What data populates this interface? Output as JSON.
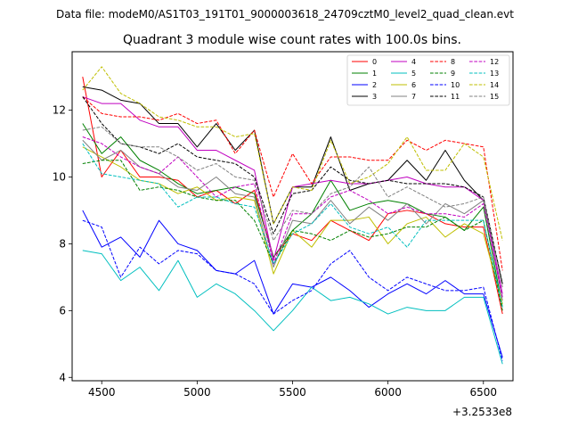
{
  "chart_data": {
    "type": "line",
    "suptitle": "Data file: modeM0/AS1T03_191T01_9000003618_24709cztM0_level2_quad_clean.evt",
    "title": "Quadrant 3 module wise count rates with 100.0s bins.",
    "xlabel": "",
    "ylabel": "",
    "x_offset_label": "+3.2533e8",
    "xlim": [
      4345,
      6655
    ],
    "ylim": [
      3.9,
      13.75
    ],
    "xticks": [
      4500,
      5000,
      5500,
      6000,
      6500
    ],
    "yticks": [
      4,
      6,
      8,
      10,
      12
    ],
    "legend_position": "top-right",
    "x": [
      4400,
      4500,
      4600,
      4700,
      4800,
      4900,
      5000,
      5100,
      5200,
      5300,
      5400,
      5500,
      5600,
      5700,
      5800,
      5900,
      6000,
      6100,
      6200,
      6300,
      6400,
      6500,
      6600
    ],
    "series": [
      {
        "name": "0",
        "color": "#ff0000",
        "dash": "solid",
        "values": [
          13.0,
          10.0,
          10.8,
          10.0,
          10.0,
          9.9,
          9.4,
          9.6,
          9.2,
          9.6,
          7.6,
          8.3,
          8.1,
          8.7,
          8.4,
          8.1,
          8.9,
          9.0,
          8.9,
          8.6,
          8.5,
          8.5,
          5.9
        ]
      },
      {
        "name": "1",
        "color": "#008000",
        "dash": "solid",
        "values": [
          11.6,
          10.7,
          11.2,
          10.5,
          10.2,
          9.8,
          9.5,
          9.6,
          9.7,
          9.5,
          7.6,
          8.4,
          8.9,
          9.9,
          9.0,
          9.2,
          9.3,
          9.2,
          8.9,
          8.8,
          8.4,
          9.1,
          6.1
        ]
      },
      {
        "name": "2",
        "color": "#0000ff",
        "dash": "solid",
        "values": [
          9.0,
          7.9,
          8.2,
          7.6,
          8.7,
          8.0,
          7.8,
          7.2,
          7.1,
          7.5,
          5.9,
          6.8,
          6.7,
          7.0,
          6.6,
          6.1,
          6.5,
          6.8,
          6.5,
          6.9,
          6.5,
          6.5,
          4.6
        ]
      },
      {
        "name": "3",
        "color": "#000000",
        "dash": "solid",
        "values": [
          12.7,
          12.6,
          12.3,
          12.2,
          11.6,
          11.6,
          10.9,
          11.6,
          10.8,
          11.4,
          8.6,
          9.7,
          9.7,
          11.2,
          9.6,
          9.8,
          9.9,
          10.5,
          9.9,
          10.8,
          9.9,
          9.3,
          6.8
        ]
      },
      {
        "name": "4",
        "color": "#c000c0",
        "dash": "solid",
        "values": [
          12.4,
          12.2,
          12.2,
          11.7,
          11.5,
          11.5,
          10.8,
          10.8,
          10.5,
          10.2,
          7.5,
          9.7,
          9.8,
          9.9,
          9.8,
          9.8,
          9.9,
          10.0,
          9.8,
          9.7,
          9.7,
          9.3,
          6.5
        ]
      },
      {
        "name": "5",
        "color": "#00bfbf",
        "dash": "solid",
        "values": [
          7.8,
          7.7,
          6.9,
          7.3,
          6.6,
          7.5,
          6.4,
          6.8,
          6.5,
          6.0,
          5.4,
          6.0,
          6.7,
          6.3,
          6.4,
          6.2,
          5.9,
          6.1,
          6.0,
          6.0,
          6.4,
          6.4,
          4.4
        ]
      },
      {
        "name": "6",
        "color": "#bfbf00",
        "dash": "solid",
        "values": [
          10.9,
          10.6,
          10.3,
          9.9,
          9.8,
          9.5,
          9.7,
          9.3,
          9.4,
          9.3,
          7.1,
          8.4,
          7.9,
          8.7,
          8.7,
          8.8,
          8.0,
          8.6,
          8.8,
          8.2,
          8.6,
          8.3,
          6.2
        ]
      },
      {
        "name": "7",
        "color": "#808080",
        "dash": "solid",
        "values": [
          11.1,
          10.5,
          10.8,
          10.3,
          10.1,
          9.7,
          9.6,
          10.0,
          9.5,
          9.4,
          7.3,
          8.7,
          8.6,
          9.3,
          8.6,
          9.1,
          8.7,
          9.2,
          8.6,
          9.2,
          8.9,
          9.3,
          6.3
        ]
      },
      {
        "name": "8",
        "color": "#ff0000",
        "dash": "dashed",
        "values": [
          12.4,
          11.9,
          11.8,
          11.8,
          11.7,
          11.9,
          11.6,
          11.7,
          10.7,
          11.4,
          9.4,
          10.7,
          9.8,
          10.6,
          10.6,
          10.5,
          10.5,
          11.1,
          10.8,
          11.1,
          11.0,
          10.9,
          7.2
        ]
      },
      {
        "name": "9",
        "color": "#008000",
        "dash": "dashed",
        "values": [
          10.4,
          10.5,
          10.5,
          9.6,
          9.7,
          9.6,
          9.4,
          9.3,
          9.3,
          8.7,
          7.4,
          8.4,
          8.3,
          8.1,
          8.4,
          8.2,
          8.3,
          8.5,
          8.5,
          8.8,
          8.4,
          8.7,
          6.0
        ]
      },
      {
        "name": "10",
        "color": "#0000ff",
        "dash": "dashed",
        "values": [
          8.7,
          8.5,
          7.0,
          7.9,
          7.4,
          7.8,
          7.7,
          7.2,
          7.1,
          6.8,
          5.9,
          6.3,
          6.6,
          7.4,
          7.8,
          7.0,
          6.6,
          7.0,
          6.8,
          6.6,
          6.6,
          6.7,
          4.5
        ]
      },
      {
        "name": "11",
        "color": "#000000",
        "dash": "dashed",
        "values": [
          12.4,
          11.6,
          11.0,
          10.9,
          10.7,
          11.0,
          10.6,
          10.5,
          10.4,
          10.0,
          8.3,
          9.5,
          9.6,
          10.3,
          9.9,
          9.8,
          9.9,
          9.8,
          9.8,
          9.8,
          9.7,
          9.4,
          6.8
        ]
      },
      {
        "name": "12",
        "color": "#c000c0",
        "dash": "dashed",
        "values": [
          11.2,
          11.0,
          10.6,
          10.3,
          10.1,
          10.6,
          10.0,
          9.4,
          9.7,
          9.8,
          7.4,
          8.9,
          8.9,
          9.4,
          9.6,
          9.3,
          8.9,
          9.1,
          8.9,
          8.9,
          8.8,
          9.2,
          6.4
        ]
      },
      {
        "name": "13",
        "color": "#00bfbf",
        "dash": "dashed",
        "values": [
          11.0,
          10.1,
          10.0,
          9.9,
          9.8,
          9.1,
          9.4,
          9.4,
          9.2,
          9.1,
          7.4,
          8.3,
          8.6,
          9.2,
          8.5,
          8.3,
          8.5,
          7.9,
          8.7,
          8.7,
          8.7,
          8.7,
          6.1
        ]
      },
      {
        "name": "14",
        "color": "#bfbf00",
        "dash": "dashed",
        "values": [
          12.6,
          13.3,
          12.5,
          12.2,
          11.8,
          11.7,
          11.5,
          11.5,
          11.2,
          11.3,
          8.6,
          9.7,
          9.6,
          11.1,
          9.8,
          10.0,
          10.4,
          11.2,
          10.2,
          10.2,
          11.0,
          10.6,
          8.1
        ]
      },
      {
        "name": "15",
        "color": "#808080",
        "dash": "dashed",
        "values": [
          11.4,
          11.5,
          11.0,
          10.9,
          10.9,
          10.6,
          10.2,
          10.4,
          10.0,
          9.9,
          8.1,
          9.0,
          8.9,
          9.5,
          9.7,
          10.3,
          9.4,
          9.7,
          9.4,
          9.1,
          9.2,
          9.4,
          6.7
        ]
      }
    ]
  }
}
